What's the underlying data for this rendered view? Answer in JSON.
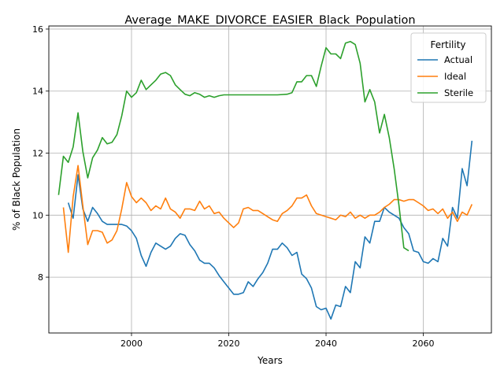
{
  "chart_data": {
    "type": "line",
    "title": "Average_MAKE_DIVORCE_EASIER_Black_Population",
    "xlabel": "Years",
    "ylabel": "% of Black Population",
    "xlim": [
      1983,
      2074
    ],
    "ylim": [
      6.2,
      16.1
    ],
    "xticks": [
      2000,
      2020,
      2040,
      2060
    ],
    "yticks": [
      8,
      10,
      12,
      14,
      16
    ],
    "grid": true,
    "legend": {
      "title": "Fertility",
      "placement": "top-right"
    },
    "series": [
      {
        "name": "Actual",
        "color": "#1f77b4",
        "points": [
          [
            1987,
            10.4
          ],
          [
            1988,
            9.9
          ],
          [
            1989,
            11.3
          ],
          [
            1990,
            10.2
          ],
          [
            1991,
            9.8
          ],
          [
            1992,
            10.25
          ],
          [
            1993,
            10.05
          ],
          [
            1994,
            9.8
          ],
          [
            1995,
            9.7
          ],
          [
            1996,
            9.7
          ],
          [
            1997,
            9.7
          ],
          [
            1998,
            9.7
          ],
          [
            1999,
            9.65
          ],
          [
            2000,
            9.5
          ],
          [
            2001,
            9.25
          ],
          [
            2002,
            8.7
          ],
          [
            2003,
            8.35
          ],
          [
            2004,
            8.8
          ],
          [
            2005,
            9.1
          ],
          [
            2006,
            9.0
          ],
          [
            2007,
            8.9
          ],
          [
            2008,
            9.0
          ],
          [
            2009,
            9.25
          ],
          [
            2010,
            9.4
          ],
          [
            2011,
            9.35
          ],
          [
            2012,
            9.05
          ],
          [
            2013,
            8.85
          ],
          [
            2014,
            8.55
          ],
          [
            2015,
            8.45
          ],
          [
            2016,
            8.45
          ],
          [
            2017,
            8.3
          ],
          [
            2018,
            8.05
          ],
          [
            2019,
            7.85
          ],
          [
            2020,
            7.65
          ],
          [
            2021,
            7.45
          ],
          [
            2022,
            7.45
          ],
          [
            2023,
            7.5
          ],
          [
            2024,
            7.85
          ],
          [
            2025,
            7.7
          ],
          [
            2026,
            7.95
          ],
          [
            2027,
            8.15
          ],
          [
            2028,
            8.45
          ],
          [
            2029,
            8.9
          ],
          [
            2030,
            8.9
          ],
          [
            2031,
            9.1
          ],
          [
            2032,
            8.95
          ],
          [
            2033,
            8.7
          ],
          [
            2034,
            8.8
          ],
          [
            2035,
            8.1
          ],
          [
            2036,
            7.95
          ],
          [
            2037,
            7.65
          ],
          [
            2038,
            7.05
          ],
          [
            2039,
            6.95
          ],
          [
            2040,
            7.0
          ],
          [
            2041,
            6.65
          ],
          [
            2042,
            7.1
          ],
          [
            2043,
            7.05
          ],
          [
            2044,
            7.7
          ],
          [
            2045,
            7.5
          ],
          [
            2046,
            8.5
          ],
          [
            2047,
            8.3
          ],
          [
            2048,
            9.3
          ],
          [
            2049,
            9.1
          ],
          [
            2050,
            9.8
          ],
          [
            2051,
            9.8
          ],
          [
            2052,
            10.25
          ],
          [
            2053,
            10.1
          ],
          [
            2054,
            10.0
          ],
          [
            2055,
            9.9
          ],
          [
            2056,
            9.6
          ],
          [
            2057,
            9.4
          ],
          [
            2058,
            8.85
          ],
          [
            2059,
            8.8
          ],
          [
            2060,
            8.5
          ],
          [
            2061,
            8.45
          ],
          [
            2062,
            8.6
          ],
          [
            2063,
            8.5
          ],
          [
            2064,
            9.25
          ],
          [
            2065,
            9.0
          ],
          [
            2066,
            10.25
          ],
          [
            2067,
            9.9
          ],
          [
            2068,
            11.5
          ],
          [
            2069,
            10.95
          ],
          [
            2070,
            12.4
          ]
        ]
      },
      {
        "name": "Ideal",
        "color": "#ff7f0e",
        "points": [
          [
            1986,
            10.25
          ],
          [
            1987,
            8.8
          ],
          [
            1988,
            10.6
          ],
          [
            1989,
            11.6
          ],
          [
            1990,
            10.3
          ],
          [
            1991,
            9.05
          ],
          [
            1992,
            9.5
          ],
          [
            1993,
            9.5
          ],
          [
            1994,
            9.45
          ],
          [
            1995,
            9.1
          ],
          [
            1996,
            9.2
          ],
          [
            1997,
            9.5
          ],
          [
            1998,
            10.2
          ],
          [
            1999,
            11.05
          ],
          [
            2000,
            10.6
          ],
          [
            2001,
            10.4
          ],
          [
            2002,
            10.55
          ],
          [
            2003,
            10.4
          ],
          [
            2004,
            10.15
          ],
          [
            2005,
            10.3
          ],
          [
            2006,
            10.2
          ],
          [
            2007,
            10.55
          ],
          [
            2008,
            10.2
          ],
          [
            2009,
            10.1
          ],
          [
            2010,
            9.9
          ],
          [
            2011,
            10.2
          ],
          [
            2012,
            10.2
          ],
          [
            2013,
            10.15
          ],
          [
            2014,
            10.45
          ],
          [
            2015,
            10.2
          ],
          [
            2016,
            10.3
          ],
          [
            2017,
            10.05
          ],
          [
            2018,
            10.1
          ],
          [
            2019,
            9.9
          ],
          [
            2020,
            9.75
          ],
          [
            2021,
            9.6
          ],
          [
            2022,
            9.75
          ],
          [
            2023,
            10.2
          ],
          [
            2024,
            10.25
          ],
          [
            2025,
            10.15
          ],
          [
            2026,
            10.15
          ],
          [
            2027,
            10.05
          ],
          [
            2028,
            9.95
          ],
          [
            2029,
            9.85
          ],
          [
            2030,
            9.8
          ],
          [
            2031,
            10.05
          ],
          [
            2032,
            10.15
          ],
          [
            2033,
            10.3
          ],
          [
            2034,
            10.55
          ],
          [
            2035,
            10.55
          ],
          [
            2036,
            10.65
          ],
          [
            2037,
            10.3
          ],
          [
            2038,
            10.05
          ],
          [
            2039,
            10.0
          ],
          [
            2040,
            9.95
          ],
          [
            2041,
            9.9
          ],
          [
            2042,
            9.85
          ],
          [
            2043,
            10.0
          ],
          [
            2044,
            9.95
          ],
          [
            2045,
            10.1
          ],
          [
            2046,
            9.9
          ],
          [
            2047,
            10.0
          ],
          [
            2048,
            9.9
          ],
          [
            2049,
            10.0
          ],
          [
            2050,
            10.0
          ],
          [
            2051,
            10.1
          ],
          [
            2052,
            10.25
          ],
          [
            2053,
            10.35
          ],
          [
            2054,
            10.5
          ],
          [
            2055,
            10.5
          ],
          [
            2056,
            10.45
          ],
          [
            2057,
            10.5
          ],
          [
            2058,
            10.5
          ],
          [
            2059,
            10.4
          ],
          [
            2060,
            10.3
          ],
          [
            2061,
            10.15
          ],
          [
            2062,
            10.2
          ],
          [
            2063,
            10.05
          ],
          [
            2064,
            10.2
          ],
          [
            2065,
            9.9
          ],
          [
            2066,
            10.1
          ],
          [
            2067,
            9.8
          ],
          [
            2068,
            10.1
          ],
          [
            2069,
            10.0
          ],
          [
            2070,
            10.35
          ]
        ]
      },
      {
        "name": "Sterile",
        "color": "#2ca02c",
        "points": [
          [
            1985,
            10.65
          ],
          [
            1986,
            11.9
          ],
          [
            1987,
            11.7
          ],
          [
            1988,
            12.2
          ],
          [
            1989,
            13.3
          ],
          [
            1990,
            12.05
          ],
          [
            1991,
            11.2
          ],
          [
            1992,
            11.85
          ],
          [
            1993,
            12.1
          ],
          [
            1994,
            12.5
          ],
          [
            1995,
            12.3
          ],
          [
            1996,
            12.35
          ],
          [
            1997,
            12.6
          ],
          [
            1998,
            13.2
          ],
          [
            1999,
            14.0
          ],
          [
            2000,
            13.8
          ],
          [
            2001,
            13.95
          ],
          [
            2002,
            14.35
          ],
          [
            2003,
            14.05
          ],
          [
            2004,
            14.2
          ],
          [
            2005,
            14.35
          ],
          [
            2006,
            14.55
          ],
          [
            2007,
            14.6
          ],
          [
            2008,
            14.5
          ],
          [
            2009,
            14.2
          ],
          [
            2010,
            14.05
          ],
          [
            2011,
            13.9
          ],
          [
            2012,
            13.85
          ],
          [
            2013,
            13.95
          ],
          [
            2014,
            13.9
          ],
          [
            2015,
            13.8
          ],
          [
            2016,
            13.85
          ],
          [
            2017,
            13.8
          ],
          [
            2018,
            13.85
          ],
          [
            2019,
            13.88
          ],
          [
            2020,
            13.88
          ],
          [
            2025,
            13.88
          ],
          [
            2030,
            13.88
          ],
          [
            2032,
            13.9
          ],
          [
            2033,
            13.95
          ],
          [
            2034,
            14.3
          ],
          [
            2035,
            14.3
          ],
          [
            2036,
            14.5
          ],
          [
            2037,
            14.5
          ],
          [
            2038,
            14.15
          ],
          [
            2039,
            14.8
          ],
          [
            2040,
            15.4
          ],
          [
            2041,
            15.2
          ],
          [
            2042,
            15.2
          ],
          [
            2043,
            15.05
          ],
          [
            2044,
            15.55
          ],
          [
            2045,
            15.6
          ],
          [
            2046,
            15.5
          ],
          [
            2047,
            14.9
          ],
          [
            2048,
            13.65
          ],
          [
            2049,
            14.05
          ],
          [
            2050,
            13.65
          ],
          [
            2051,
            12.65
          ],
          [
            2052,
            13.25
          ],
          [
            2053,
            12.5
          ],
          [
            2054,
            11.5
          ],
          [
            2055,
            10.3
          ],
          [
            2056,
            8.95
          ],
          [
            2057,
            8.85
          ]
        ]
      }
    ]
  }
}
